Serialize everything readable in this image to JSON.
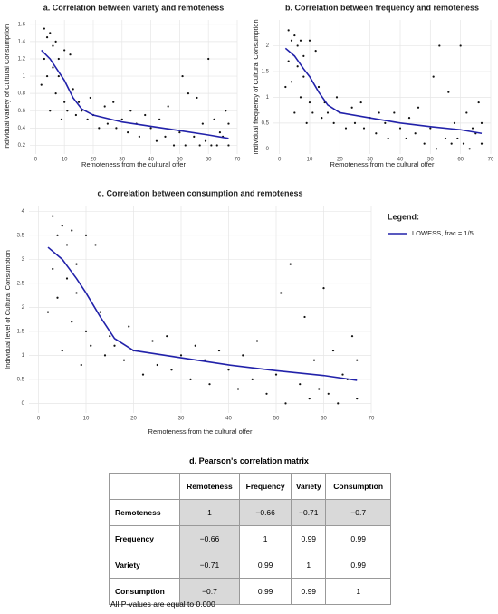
{
  "chart_data": [
    {
      "type": "scatter",
      "title": "a. Correlation between variety and remoteness",
      "x_label": "Remoteness from the cultural offer",
      "y_label": "Individual variety of Cultural Consumption",
      "x": [
        2,
        3,
        3,
        4,
        4,
        5,
        5,
        6,
        6,
        7,
        7,
        8,
        8,
        9,
        10,
        10,
        11,
        12,
        13,
        14,
        15,
        16,
        18,
        19,
        20,
        22,
        24,
        25,
        27,
        28,
        30,
        32,
        33,
        35,
        36,
        38,
        40,
        42,
        43,
        45,
        46,
        48,
        50,
        51,
        52,
        53,
        55,
        56,
        57,
        58,
        59,
        60,
        61,
        62,
        63,
        64,
        65,
        66,
        67,
        67
      ],
      "values": [
        0.9,
        1.55,
        1.2,
        1.45,
        1.0,
        1.5,
        0.6,
        1.1,
        1.35,
        1.4,
        0.8,
        1.2,
        1.0,
        0.5,
        1.3,
        0.7,
        0.6,
        1.25,
        0.85,
        0.55,
        0.7,
        0.6,
        0.5,
        0.75,
        0.55,
        0.4,
        0.65,
        0.45,
        0.7,
        0.4,
        0.5,
        0.35,
        0.6,
        0.45,
        0.3,
        0.55,
        0.4,
        0.25,
        0.5,
        0.3,
        0.65,
        0.2,
        0.35,
        1.0,
        0.2,
        0.8,
        0.3,
        0.75,
        0.2,
        0.45,
        0.25,
        1.2,
        0.2,
        0.5,
        0.2,
        0.35,
        0.3,
        0.6,
        0.2,
        0.45
      ],
      "color": "#111111",
      "lowess": {
        "color": "#2222aa",
        "x": [
          2,
          5,
          8,
          10,
          13,
          16,
          20,
          30,
          40,
          50,
          60,
          67
        ],
        "values": [
          1.3,
          1.2,
          1.05,
          0.95,
          0.75,
          0.62,
          0.55,
          0.47,
          0.42,
          0.37,
          0.32,
          0.28
        ]
      },
      "xlim": [
        -2,
        70
      ],
      "xticks": [
        0,
        10,
        20,
        30,
        40,
        50,
        60,
        70
      ],
      "ylim": [
        0.1,
        1.65
      ],
      "yticks": [
        0.2,
        0.4,
        0.6,
        0.8,
        1,
        1.2,
        1.4,
        1.6
      ],
      "grid": true
    },
    {
      "type": "scatter",
      "title": "b. Correlation between frequency and remoteness",
      "x_label": "Remoteness from the cultural offer",
      "y_label": "Individual frequency of Cultural Consumption",
      "x": [
        2,
        3,
        3,
        4,
        4,
        5,
        5,
        6,
        6,
        7,
        7,
        8,
        8,
        9,
        10,
        10,
        11,
        12,
        13,
        14,
        15,
        16,
        18,
        19,
        20,
        22,
        24,
        25,
        27,
        28,
        30,
        32,
        33,
        35,
        36,
        38,
        40,
        42,
        43,
        45,
        46,
        48,
        50,
        51,
        52,
        53,
        55,
        56,
        57,
        58,
        59,
        60,
        61,
        62,
        63,
        64,
        65,
        66,
        67,
        67
      ],
      "values": [
        1.2,
        2.3,
        1.7,
        2.1,
        1.3,
        2.2,
        0.7,
        1.6,
        2.0,
        2.1,
        1.0,
        1.8,
        1.4,
        0.5,
        2.1,
        0.9,
        0.7,
        1.9,
        1.2,
        0.6,
        0.9,
        0.7,
        0.5,
        1.0,
        0.7,
        0.4,
        0.8,
        0.5,
        0.9,
        0.4,
        0.6,
        0.3,
        0.7,
        0.5,
        0.2,
        0.7,
        0.4,
        0.2,
        0.6,
        0.3,
        0.8,
        0.1,
        0.4,
        1.4,
        0.0,
        2.0,
        0.2,
        1.1,
        0.1,
        0.5,
        0.2,
        2.0,
        0.1,
        0.7,
        0.0,
        0.4,
        0.3,
        0.9,
        0.1,
        0.5
      ],
      "color": "#111111",
      "lowess": {
        "color": "#2222aa",
        "x": [
          2,
          5,
          8,
          10,
          13,
          16,
          20,
          30,
          40,
          50,
          60,
          67
        ],
        "values": [
          1.95,
          1.8,
          1.55,
          1.4,
          1.1,
          0.85,
          0.7,
          0.6,
          0.5,
          0.43,
          0.37,
          0.3
        ]
      },
      "xlim": [
        -2,
        70
      ],
      "xticks": [
        0,
        10,
        20,
        30,
        40,
        50,
        60,
        70
      ],
      "ylim": [
        -0.1,
        2.5
      ],
      "yticks": [
        0,
        0.5,
        1,
        1.5,
        2
      ],
      "grid": true
    },
    {
      "type": "scatter",
      "title": "c. Correlation between consumption and remoteness",
      "x_label": "Remoteness from the cultural offer",
      "y_label": "Individual level of Cultural Consumption",
      "x": [
        2,
        3,
        3,
        4,
        4,
        5,
        5,
        6,
        6,
        7,
        7,
        8,
        8,
        9,
        10,
        10,
        11,
        12,
        13,
        14,
        15,
        16,
        18,
        19,
        20,
        22,
        24,
        25,
        27,
        28,
        30,
        32,
        33,
        35,
        36,
        38,
        40,
        42,
        43,
        45,
        46,
        48,
        50,
        51,
        52,
        53,
        55,
        56,
        57,
        58,
        59,
        60,
        61,
        62,
        63,
        64,
        65,
        66,
        67,
        67
      ],
      "values": [
        1.9,
        3.9,
        2.8,
        3.5,
        2.2,
        3.7,
        1.1,
        2.6,
        3.3,
        3.6,
        1.7,
        2.9,
        2.3,
        0.8,
        3.5,
        1.5,
        1.2,
        3.3,
        1.9,
        1.0,
        1.4,
        1.2,
        0.9,
        1.6,
        1.1,
        0.6,
        1.3,
        0.8,
        1.4,
        0.7,
        1.0,
        0.5,
        1.2,
        0.9,
        0.4,
        1.1,
        0.7,
        0.3,
        1.0,
        0.5,
        1.3,
        0.2,
        0.6,
        2.3,
        0.0,
        2.9,
        0.4,
        1.8,
        0.1,
        0.9,
        0.3,
        2.4,
        0.2,
        1.1,
        0.0,
        0.6,
        0.5,
        1.4,
        0.1,
        0.9
      ],
      "color": "#111111",
      "lowess": {
        "name": "LOWESS, frac = 1/5",
        "color": "#2222aa",
        "x": [
          2,
          5,
          8,
          10,
          13,
          16,
          20,
          30,
          40,
          50,
          60,
          67
        ],
        "values": [
          3.25,
          3.0,
          2.6,
          2.3,
          1.8,
          1.35,
          1.1,
          0.95,
          0.8,
          0.68,
          0.58,
          0.48
        ]
      },
      "legend": {
        "title": "Legend:",
        "position": "right"
      },
      "xlim": [
        -2,
        70
      ],
      "xticks": [
        0,
        10,
        20,
        30,
        40,
        50,
        60,
        70
      ],
      "ylim": [
        -0.2,
        4.1
      ],
      "yticks": [
        0,
        0.5,
        1,
        1.5,
        2,
        2.5,
        3,
        3.5,
        4
      ],
      "grid": true
    }
  ],
  "table": {
    "title": "d. Pearson's correlation matrix",
    "columns": [
      "Remoteness",
      "Frequency",
      "Variety",
      "Consumption"
    ],
    "rows": [
      {
        "label": "Remoteness",
        "cells": [
          "1",
          "−0.66",
          "−0.71",
          "−0.7"
        ]
      },
      {
        "label": "Frequency",
        "cells": [
          "−0.66",
          "1",
          "0.99",
          "0.99"
        ]
      },
      {
        "label": "Variety",
        "cells": [
          "−0.71",
          "0.99",
          "1",
          "0.99"
        ]
      },
      {
        "label": "Consumption",
        "cells": [
          "−0.7",
          "0.99",
          "0.99",
          "1"
        ]
      }
    ],
    "note": "All P-values are equal to 0.000"
  }
}
